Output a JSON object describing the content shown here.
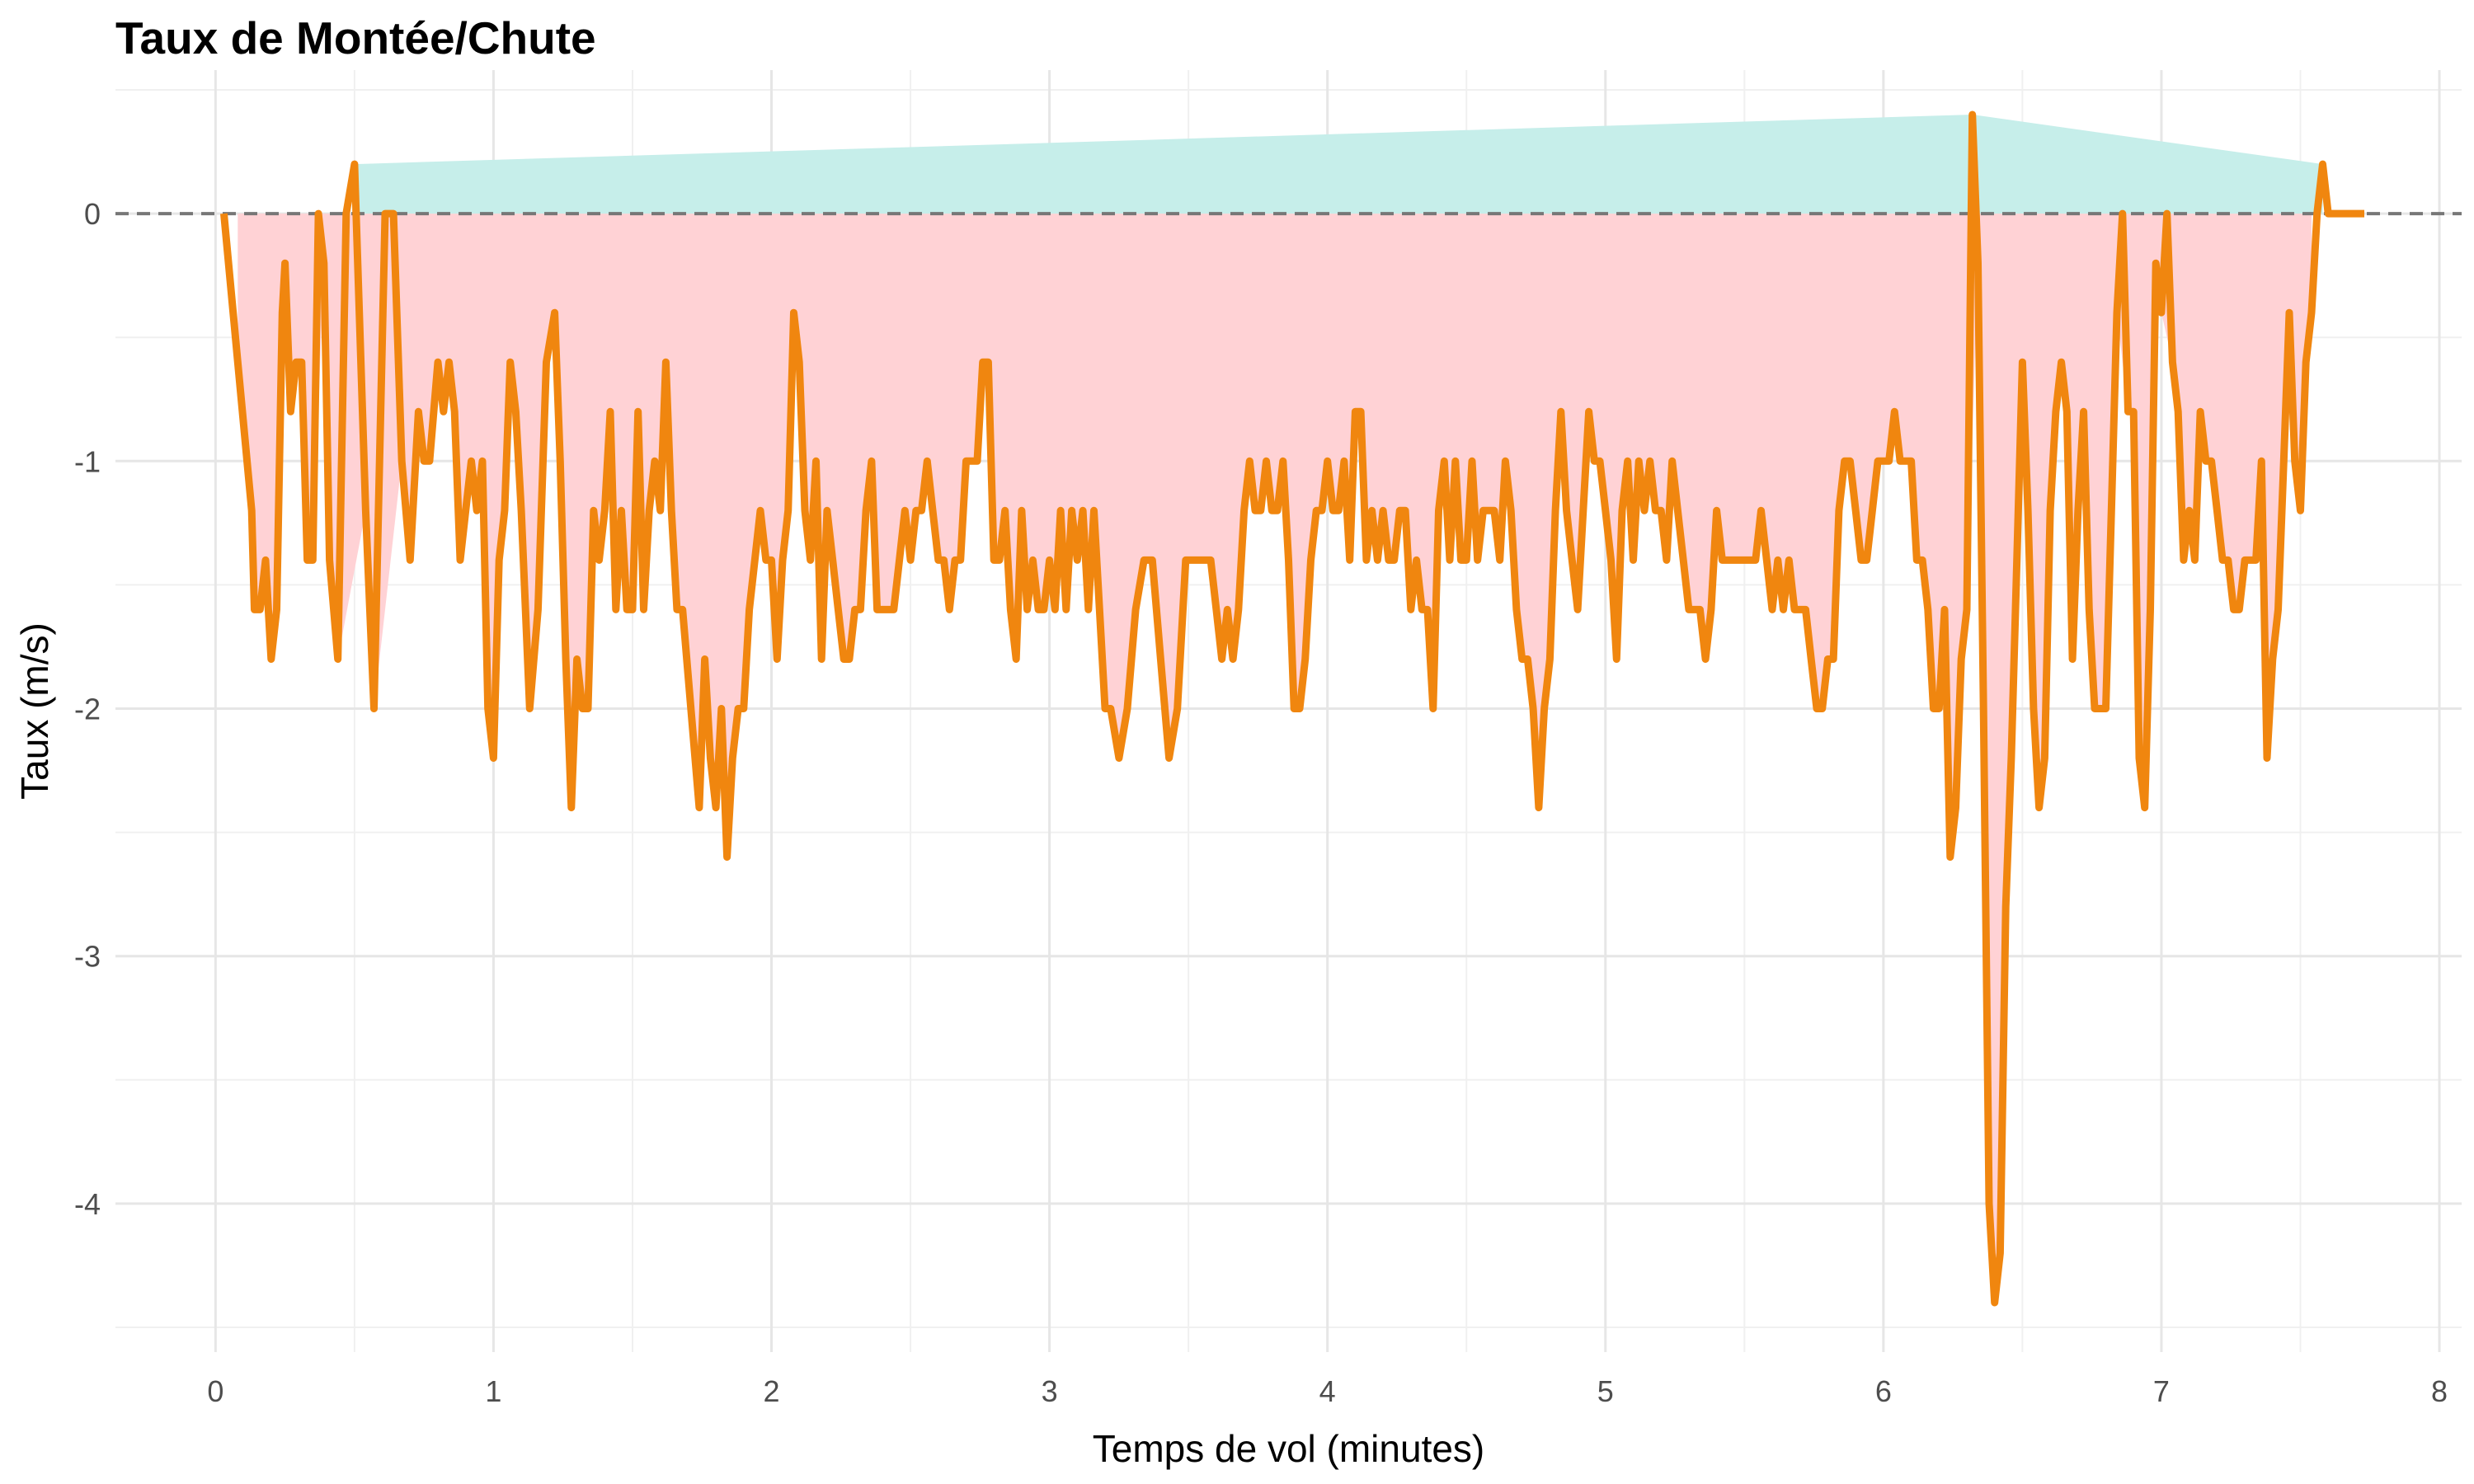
{
  "chart_data": {
    "type": "line",
    "title": "Taux de Montée/Chute",
    "xlabel": "Temps de vol (minutes)",
    "ylabel": "Taux (m/s)",
    "xlim": [
      -0.36,
      8.08
    ],
    "ylim": [
      -4.6,
      0.58
    ],
    "x_ticks": [
      0,
      1,
      2,
      3,
      4,
      5,
      6,
      7,
      8
    ],
    "y_ticks": [
      0,
      -1,
      -2,
      -3,
      -4
    ],
    "reference_line": 0,
    "grid": true,
    "legend": "none",
    "colors": {
      "line": "#F0860F",
      "positive_fill": "#C6EEEA",
      "negative_fill": "#FFD2D5",
      "reference": "#777777"
    },
    "series": [
      {
        "x": [
          0.03,
          0.08,
          0.13,
          0.14,
          0.16,
          0.18,
          0.2,
          0.22,
          0.24,
          0.25,
          0.27,
          0.29,
          0.31,
          0.33,
          0.35,
          0.37,
          0.39,
          0.41,
          0.44,
          0.47,
          0.5,
          0.54,
          0.57,
          0.61,
          0.64,
          0.67,
          0.7,
          0.73,
          0.75,
          0.77,
          0.8,
          0.82,
          0.84,
          0.86,
          0.88,
          0.9,
          0.92,
          0.94,
          0.96,
          0.98,
          1.0,
          1.02,
          1.04,
          1.06,
          1.08,
          1.1,
          1.13,
          1.16,
          1.19,
          1.22,
          1.24,
          1.26,
          1.28,
          1.3,
          1.32,
          1.34,
          1.36,
          1.38,
          1.4,
          1.42,
          1.44,
          1.46,
          1.48,
          1.5,
          1.52,
          1.54,
          1.56,
          1.58,
          1.6,
          1.62,
          1.64,
          1.66,
          1.68,
          1.71,
          1.74,
          1.76,
          1.78,
          1.8,
          1.82,
          1.84,
          1.86,
          1.88,
          1.9,
          1.92,
          1.94,
          1.96,
          1.98,
          2.0,
          2.02,
          2.04,
          2.06,
          2.08,
          2.1,
          2.12,
          2.14,
          2.16,
          2.18,
          2.2,
          2.22,
          2.24,
          2.26,
          2.28,
          2.3,
          2.32,
          2.34,
          2.36,
          2.38,
          2.4,
          2.42,
          2.44,
          2.46,
          2.48,
          2.5,
          2.52,
          2.54,
          2.56,
          2.58,
          2.6,
          2.62,
          2.64,
          2.66,
          2.68,
          2.7,
          2.72,
          2.74,
          2.76,
          2.78,
          2.8,
          2.82,
          2.84,
          2.86,
          2.88,
          2.9,
          2.92,
          2.94,
          2.96,
          2.98,
          3.0,
          3.02,
          3.04,
          3.06,
          3.08,
          3.1,
          3.12,
          3.14,
          3.16,
          3.18,
          3.2,
          3.22,
          3.25,
          3.28,
          3.31,
          3.34,
          3.37,
          3.4,
          3.43,
          3.46,
          3.49,
          3.52,
          3.55,
          3.58,
          3.6,
          3.62,
          3.64,
          3.66,
          3.68,
          3.7,
          3.72,
          3.74,
          3.76,
          3.78,
          3.8,
          3.82,
          3.84,
          3.86,
          3.88,
          3.9,
          3.92,
          3.94,
          3.96,
          3.98,
          4.0,
          4.02,
          4.04,
          4.06,
          4.08,
          4.1,
          4.12,
          4.14,
          4.16,
          4.18,
          4.2,
          4.22,
          4.24,
          4.26,
          4.28,
          4.3,
          4.32,
          4.34,
          4.36,
          4.38,
          4.4,
          4.42,
          4.44,
          4.46,
          4.48,
          4.5,
          4.52,
          4.54,
          4.56,
          4.58,
          4.6,
          4.62,
          4.64,
          4.66,
          4.68,
          4.7,
          4.72,
          4.74,
          4.76,
          4.78,
          4.8,
          4.82,
          4.84,
          4.86,
          4.88,
          4.9,
          4.92,
          4.94,
          4.96,
          4.98,
          5.0,
          5.02,
          5.04,
          5.06,
          5.08,
          5.1,
          5.12,
          5.14,
          5.16,
          5.18,
          5.2,
          5.22,
          5.24,
          5.26,
          5.28,
          5.3,
          5.32,
          5.34,
          5.36,
          5.38,
          5.4,
          5.42,
          5.44,
          5.46,
          5.48,
          5.5,
          5.52,
          5.54,
          5.56,
          5.58,
          5.6,
          5.62,
          5.64,
          5.66,
          5.68,
          5.7,
          5.72,
          5.74,
          5.76,
          5.78,
          5.8,
          5.82,
          5.84,
          5.86,
          5.88,
          5.9,
          5.92,
          5.94,
          5.96,
          5.98,
          6.0,
          6.02,
          6.04,
          6.06,
          6.08,
          6.1,
          6.12,
          6.14,
          6.16,
          6.18,
          6.2,
          6.22,
          6.24,
          6.26,
          6.28,
          6.3,
          6.32,
          6.34,
          6.36,
          6.38,
          6.4,
          6.42,
          6.44,
          6.46,
          6.48,
          6.5,
          6.52,
          6.54,
          6.56,
          6.58,
          6.6,
          6.62,
          6.64,
          6.66,
          6.68,
          6.7,
          6.72,
          6.74,
          6.76,
          6.78,
          6.8,
          6.82,
          6.84,
          6.86,
          6.88,
          6.9,
          6.92,
          6.94,
          6.96,
          6.98,
          7.0,
          7.02,
          7.04,
          7.06,
          7.08,
          7.1,
          7.12,
          7.14,
          7.16,
          7.18,
          7.2,
          7.22,
          7.24,
          7.26,
          7.28,
          7.3,
          7.32,
          7.34,
          7.36,
          7.38,
          7.4,
          7.42,
          7.44,
          7.46,
          7.48,
          7.5,
          7.52,
          7.54,
          7.56,
          7.58,
          7.6,
          7.65,
          7.7,
          7.73
        ],
        "y": [
          0,
          -0.6,
          -1.2,
          -1.6,
          -1.6,
          -1.4,
          -1.8,
          -1.6,
          -0.4,
          -0.2,
          -0.8,
          -0.6,
          -0.6,
          -1.4,
          -1.4,
          0,
          -0.2,
          -1.4,
          -1.8,
          0,
          0.2,
          -1.2,
          -2,
          0,
          0,
          -1,
          -1.4,
          -0.8,
          -1,
          -1,
          -0.6,
          -0.8,
          -0.6,
          -0.8,
          -1.4,
          -1.2,
          -1,
          -1.2,
          -1,
          -2,
          -2.2,
          -1.4,
          -1.2,
          -0.6,
          -0.8,
          -1.2,
          -2,
          -1.6,
          -0.6,
          -0.4,
          -1,
          -1.8,
          -2.4,
          -1.8,
          -2,
          -2,
          -1.2,
          -1.4,
          -1.2,
          -0.8,
          -1.6,
          -1.2,
          -1.6,
          -1.6,
          -0.8,
          -1.6,
          -1.2,
          -1,
          -1.2,
          -0.6,
          -1.2,
          -1.6,
          -1.6,
          -2,
          -2.4,
          -1.8,
          -2.2,
          -2.4,
          -2,
          -2.6,
          -2.2,
          -2,
          -2,
          -1.6,
          -1.4,
          -1.2,
          -1.4,
          -1.4,
          -1.8,
          -1.4,
          -1.2,
          -0.4,
          -0.6,
          -1.2,
          -1.4,
          -1,
          -1.8,
          -1.2,
          -1.4,
          -1.6,
          -1.8,
          -1.8,
          -1.6,
          -1.6,
          -1.2,
          -1,
          -1.6,
          -1.6,
          -1.6,
          -1.6,
          -1.4,
          -1.2,
          -1.4,
          -1.2,
          -1.2,
          -1,
          -1.2,
          -1.4,
          -1.4,
          -1.6,
          -1.4,
          -1.4,
          -1,
          -1,
          -1,
          -0.6,
          -0.6,
          -1.4,
          -1.4,
          -1.2,
          -1.6,
          -1.8,
          -1.2,
          -1.6,
          -1.4,
          -1.6,
          -1.6,
          -1.4,
          -1.6,
          -1.2,
          -1.6,
          -1.2,
          -1.4,
          -1.2,
          -1.6,
          -1.2,
          -1.6,
          -2,
          -2,
          -2.2,
          -2,
          -1.6,
          -1.4,
          -1.4,
          -1.8,
          -2.2,
          -2,
          -1.4,
          -1.4,
          -1.4,
          -1.4,
          -1.6,
          -1.8,
          -1.6,
          -1.8,
          -1.6,
          -1.2,
          -1,
          -1.2,
          -1.2,
          -1,
          -1.2,
          -1.2,
          -1,
          -1.4,
          -2,
          -2,
          -1.8,
          -1.4,
          -1.2,
          -1.2,
          -1,
          -1.2,
          -1.2,
          -1,
          -1.4,
          -0.8,
          -0.8,
          -1.4,
          -1.2,
          -1.4,
          -1.2,
          -1.4,
          -1.4,
          -1.2,
          -1.2,
          -1.6,
          -1.4,
          -1.6,
          -1.6,
          -2,
          -1.2,
          -1,
          -1.4,
          -1,
          -1.4,
          -1.4,
          -1,
          -1.4,
          -1.2,
          -1.2,
          -1.2,
          -1.4,
          -1,
          -1.2,
          -1.6,
          -1.8,
          -1.8,
          -2,
          -2.4,
          -2,
          -1.8,
          -1.2,
          -0.8,
          -1.2,
          -1.4,
          -1.6,
          -1.2,
          -0.8,
          -1,
          -1,
          -1.2,
          -1.4,
          -1.8,
          -1.2,
          -1,
          -1.4,
          -1,
          -1.2,
          -1,
          -1.2,
          -1.2,
          -1.4,
          -1,
          -1.2,
          -1.4,
          -1.6,
          -1.6,
          -1.6,
          -1.8,
          -1.6,
          -1.2,
          -1.4,
          -1.4,
          -1.4,
          -1.4,
          -1.4,
          -1.4,
          -1.4,
          -1.2,
          -1.4,
          -1.6,
          -1.4,
          -1.6,
          -1.4,
          -1.6,
          -1.6,
          -1.6,
          -1.8,
          -2,
          -2,
          -1.8,
          -1.8,
          -1.2,
          -1,
          -1,
          -1.2,
          -1.4,
          -1.4,
          -1.2,
          -1,
          -1,
          -1,
          -0.8,
          -1,
          -1,
          -1,
          -1.4,
          -1.4,
          -1.6,
          -2,
          -2,
          -1.6,
          -2.6,
          -2.4,
          -1.8,
          -1.6,
          0.4,
          -0.2,
          -2,
          -4,
          -4.4,
          -4.2,
          -2.8,
          -2.2,
          -1.4,
          -0.6,
          -1.2,
          -2,
          -2.4,
          -2.2,
          -1.2,
          -0.8,
          -0.6,
          -0.8,
          -1.8,
          -1.2,
          -0.8,
          -1.6,
          -2,
          -2,
          -2,
          -1.2,
          -0.4,
          0,
          -0.8,
          -0.8,
          -2.2,
          -2.4,
          -1.6,
          -0.2,
          -0.4,
          0,
          -0.6,
          -0.8,
          -1.4,
          -1.2,
          -1.4,
          -0.8,
          -1,
          -1,
          -1.2,
          -1.4,
          -1.4,
          -1.6,
          -1.6,
          -1.4,
          -1.4,
          -1.4,
          -1,
          -2.2,
          -1.8,
          -1.6,
          -1,
          -0.4,
          -1,
          -1.2,
          -0.6,
          -0.4,
          0,
          0.2,
          0,
          0,
          0,
          0
        ]
      }
    ]
  }
}
